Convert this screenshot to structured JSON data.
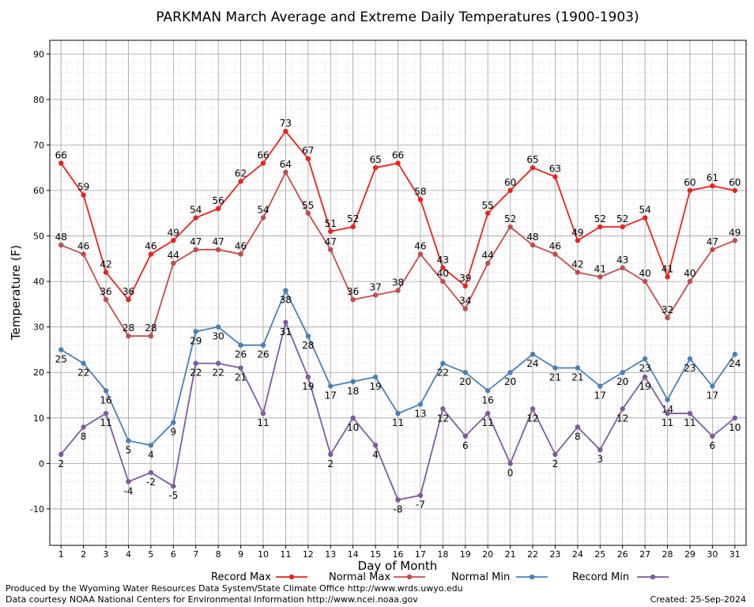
{
  "chart_data": {
    "type": "line",
    "title": "PARKMAN March Average and Extreme Daily Temperatures (1900-1903)",
    "xlabel": "Day of Month",
    "ylabel": "Temperature (F)",
    "ylim": [
      -18,
      93
    ],
    "y_ticks": [
      -10,
      0,
      10,
      20,
      30,
      40,
      50,
      60,
      70,
      80,
      90
    ],
    "x": [
      1,
      2,
      3,
      4,
      5,
      6,
      7,
      8,
      9,
      10,
      11,
      12,
      13,
      14,
      15,
      16,
      17,
      18,
      19,
      20,
      21,
      22,
      23,
      24,
      25,
      26,
      27,
      28,
      29,
      30,
      31
    ],
    "grid": true,
    "legend_position": "bottom",
    "series": [
      {
        "name": "Record Max",
        "color": "#e8231e",
        "values": [
          66,
          59,
          42,
          36,
          46,
          49,
          54,
          56,
          62,
          66,
          73,
          67,
          51,
          52,
          65,
          66,
          58,
          43,
          39,
          55,
          60,
          65,
          63,
          49,
          52,
          52,
          54,
          41,
          60,
          61,
          60
        ],
        "labels": [
          "66",
          "59",
          "42",
          "36",
          "46",
          "49",
          "54",
          "56",
          "62",
          "66",
          "73",
          "67",
          "51",
          "52",
          "65",
          "66",
          "58",
          "43",
          "39",
          "55",
          "60",
          "65",
          "63",
          "49",
          "52",
          "52",
          "54",
          "41",
          "60",
          "61",
          "60"
        ]
      },
      {
        "name": "Normal Max",
        "color": "#bf4d4f",
        "values": [
          48,
          46,
          36,
          28,
          28,
          44,
          47,
          47,
          46,
          54,
          64,
          55,
          47,
          36,
          37,
          38,
          46,
          40,
          34,
          44,
          52,
          48,
          46,
          42,
          41,
          43,
          40,
          32,
          40,
          47,
          49
        ],
        "labels": [
          "48",
          "46",
          "36",
          "28",
          "28",
          "44",
          "47",
          "47",
          "46",
          "54",
          "64",
          "55",
          "47",
          "36",
          "37",
          "38",
          "46",
          "40",
          "34",
          "44",
          "52",
          "48",
          "46",
          "42",
          "41",
          "43",
          "40",
          "32",
          "40",
          "47",
          "49"
        ]
      },
      {
        "name": "Normal Min",
        "color": "#4a7fb5",
        "values": [
          25,
          22,
          16,
          5,
          4,
          9,
          29,
          30,
          26,
          26,
          38,
          28,
          17,
          18,
          19,
          11,
          13,
          22,
          20,
          16,
          20,
          24,
          21,
          21,
          17,
          20,
          23,
          14,
          23,
          17,
          24
        ],
        "labels": [
          "25",
          "22",
          "16",
          "5",
          "4",
          "9",
          "29",
          "30",
          "26",
          "26",
          "38",
          "28",
          "17",
          "18",
          "19",
          "11",
          "13",
          "22",
          "20",
          "16",
          "20",
          "24",
          "21",
          "21",
          "17",
          "20",
          "23",
          "14",
          "23",
          "17",
          "24"
        ]
      },
      {
        "name": "Record Min",
        "color": "#7e5b9c",
        "values": [
          2,
          8,
          11,
          -4,
          -2,
          -5,
          22,
          22,
          21,
          11,
          31,
          19,
          2,
          10,
          4,
          -8,
          -7,
          12,
          6,
          11,
          0,
          12,
          2,
          8,
          3,
          12,
          19,
          11,
          11,
          6,
          10
        ],
        "labels": [
          "2",
          "8",
          "11",
          "-4",
          "-2",
          "-5",
          "22",
          "22",
          "21",
          "11",
          "31",
          "19",
          "2",
          "10",
          "4",
          "-8",
          "-7",
          "12",
          "6",
          "11",
          "0",
          "12",
          "2",
          "8",
          "3",
          "12",
          "19",
          "11",
          "11",
          "6",
          "10"
        ]
      }
    ]
  },
  "footer": {
    "produced_by": "Produced by the Wyoming Water Resources Data System/State Climate Office http://www.wrds.uwyo.edu",
    "courtesy": "Data courtesy NOAA National Centers for Environmental Information http://www.ncei.noaa.gov",
    "created": "Created: 25-Sep-2024"
  }
}
